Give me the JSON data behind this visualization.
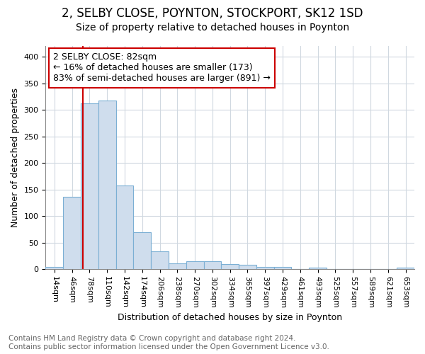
{
  "title": "2, SELBY CLOSE, POYNTON, STOCKPORT, SK12 1SD",
  "subtitle": "Size of property relative to detached houses in Poynton",
  "xlabel": "Distribution of detached houses by size in Poynton",
  "ylabel": "Number of detached properties",
  "bar_labels": [
    "14sqm",
    "46sqm",
    "78sqm",
    "110sqm",
    "142sqm",
    "174sqm",
    "206sqm",
    "238sqm",
    "270sqm",
    "302sqm",
    "334sqm",
    "365sqm",
    "397sqm",
    "429sqm",
    "461sqm",
    "493sqm",
    "525sqm",
    "557sqm",
    "589sqm",
    "621sqm",
    "653sqm"
  ],
  "bar_values": [
    4,
    136,
    312,
    318,
    157,
    70,
    33,
    11,
    15,
    15,
    10,
    8,
    4,
    4,
    0,
    3,
    0,
    0,
    0,
    0,
    3
  ],
  "bar_color": "#cfdded",
  "bar_edge_color": "#7bafd4",
  "bar_width": 1.0,
  "annotation_text": "2 SELBY CLOSE: 82sqm\n← 16% of detached houses are smaller (173)\n83% of semi-detached houses are larger (891) →",
  "annotation_box_facecolor": "#ffffff",
  "annotation_box_edgecolor": "#cc0000",
  "red_line_color": "#cc0000",
  "ylim": [
    0,
    420
  ],
  "yticks": [
    0,
    50,
    100,
    150,
    200,
    250,
    300,
    350,
    400
  ],
  "background_color": "#ffffff",
  "grid_color": "#d0d8e0",
  "footer_text": "Contains HM Land Registry data © Crown copyright and database right 2024.\nContains public sector information licensed under the Open Government Licence v3.0.",
  "title_fontsize": 12,
  "subtitle_fontsize": 10,
  "xlabel_fontsize": 9,
  "ylabel_fontsize": 9,
  "tick_fontsize": 8,
  "annotation_fontsize": 9,
  "footer_fontsize": 7.5
}
